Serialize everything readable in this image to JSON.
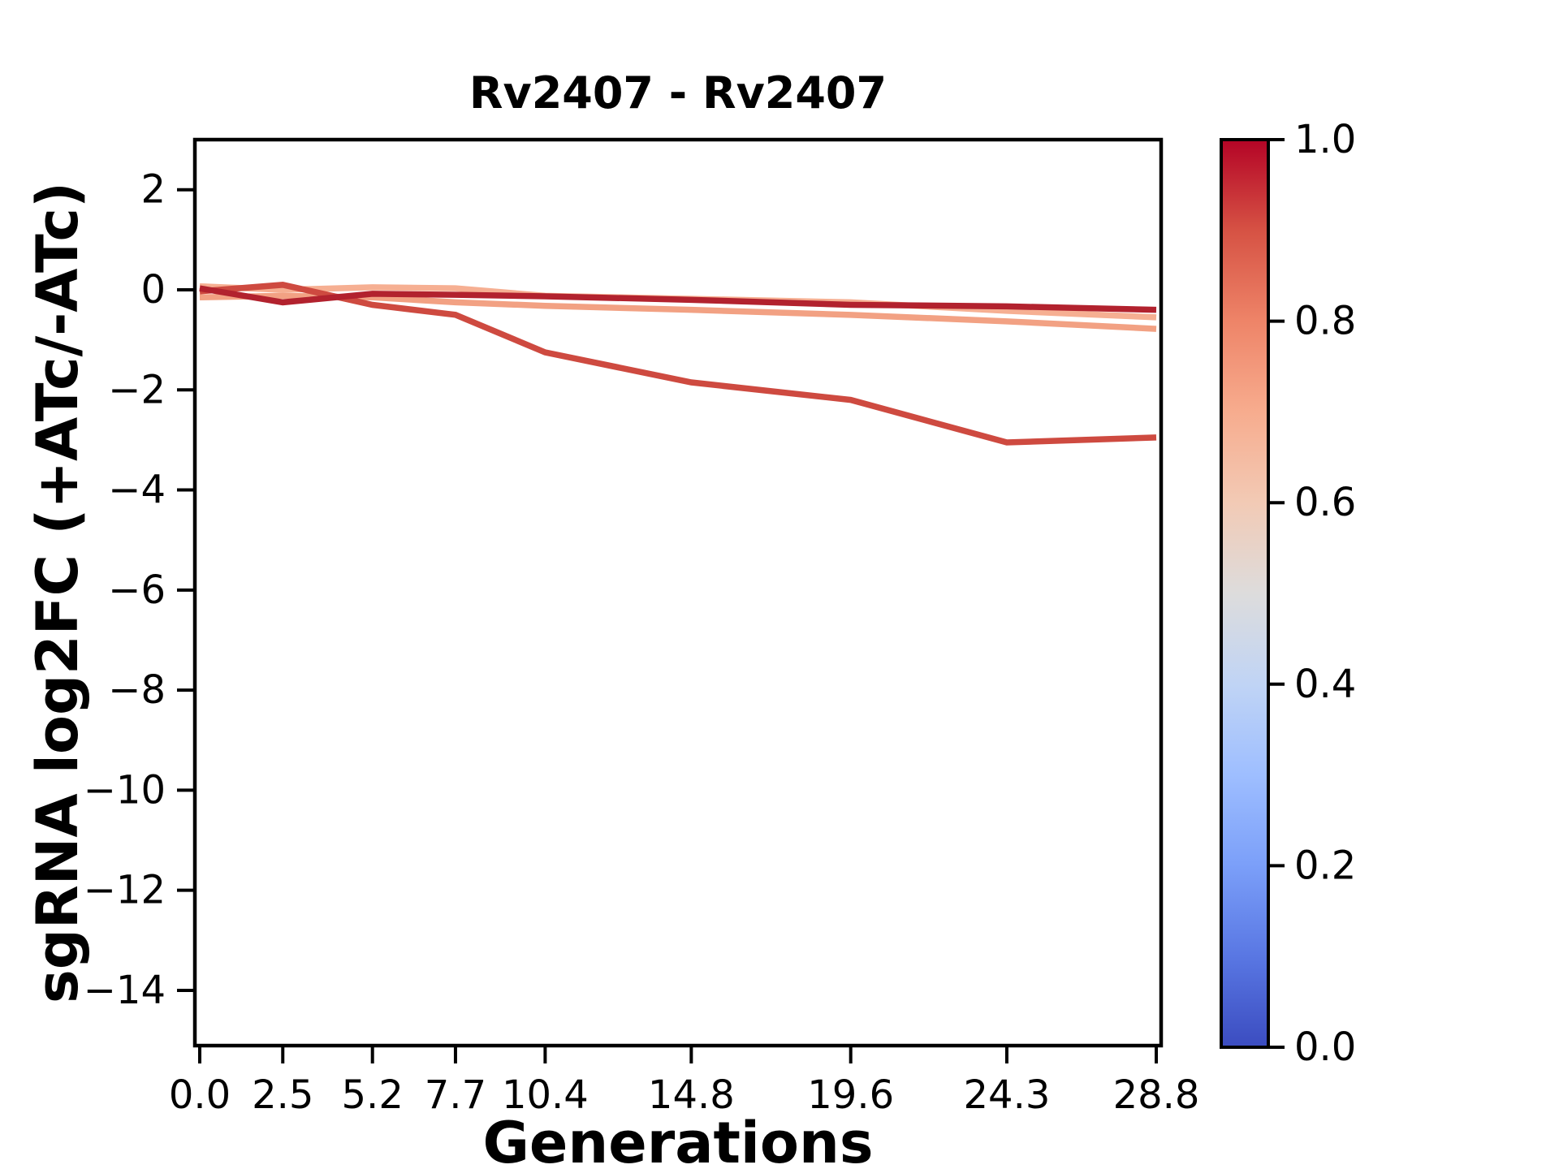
{
  "figure": {
    "background_color": "#ffffff"
  },
  "chart_data": {
    "type": "line",
    "title": "Rv2407 - Rv2407",
    "xlabel": "Generations",
    "ylabel": "sgRNA log2FC (+ATc/-ATc)",
    "grid": false,
    "xlim": [
      0,
      28.8
    ],
    "ylim": [
      -15.1,
      3.0
    ],
    "x": [
      0.0,
      2.5,
      5.2,
      7.7,
      10.4,
      14.8,
      19.6,
      24.3,
      28.8
    ],
    "xtick_labels": [
      "0.0",
      "2.5",
      "5.2",
      "7.7",
      "10.4",
      "14.8",
      "19.6",
      "24.3",
      "28.8"
    ],
    "ytick_values": [
      2,
      0,
      -2,
      -4,
      -6,
      -8,
      -10,
      -12,
      -14
    ],
    "ytick_labels": [
      "2",
      "0",
      "−2",
      "−4",
      "−6",
      "−8",
      "−10",
      "−12",
      "−14"
    ],
    "series": [
      {
        "name": "line-1",
        "description": "light salmon sgRNA trace (upper)",
        "color": "#f6af92",
        "values": [
          0.07,
          0.0,
          0.05,
          0.03,
          -0.12,
          -0.18,
          -0.25,
          -0.42,
          -0.55
        ]
      },
      {
        "name": "line-2",
        "description": "light salmon sgRNA trace (lower)",
        "color": "#f2a183",
        "values": [
          -0.15,
          -0.12,
          -0.15,
          -0.25,
          -0.32,
          -0.4,
          -0.5,
          -0.63,
          -0.78
        ]
      },
      {
        "name": "line-3",
        "description": "medium red sgRNA trace that depletes to about -3",
        "color": "#ce4a40",
        "values": [
          -0.03,
          0.1,
          -0.3,
          -0.5,
          -1.25,
          -1.85,
          -2.2,
          -3.05,
          -2.95
        ]
      },
      {
        "name": "line-4",
        "description": "dark red sgRNA trace staying near 0",
        "color": "#b2222e",
        "values": [
          0.03,
          -0.25,
          -0.08,
          -0.1,
          -0.13,
          -0.2,
          -0.3,
          -0.33,
          -0.4
        ]
      }
    ],
    "legend": "none",
    "colorbar": {
      "colormap": "coolwarm",
      "range": [
        0.0,
        1.0
      ],
      "ticks": [
        {
          "value": 1.0,
          "label": "1.0"
        },
        {
          "value": 0.8,
          "label": "0.8"
        },
        {
          "value": 0.6,
          "label": "0.6"
        },
        {
          "value": 0.4,
          "label": "0.4"
        },
        {
          "value": 0.2,
          "label": "0.2"
        },
        {
          "value": 0.0,
          "label": "0.0"
        }
      ],
      "gradient_stops": [
        {
          "offset": 0.0,
          "color": "#3b4cc0"
        },
        {
          "offset": 0.1,
          "color": "#5977e3"
        },
        {
          "offset": 0.2,
          "color": "#7b9ff9"
        },
        {
          "offset": 0.3,
          "color": "#9ebeff"
        },
        {
          "offset": 0.4,
          "color": "#c0d4f5"
        },
        {
          "offset": 0.5,
          "color": "#dddcdc"
        },
        {
          "offset": 0.6,
          "color": "#f2cab5"
        },
        {
          "offset": 0.7,
          "color": "#f7ac8e"
        },
        {
          "offset": 0.8,
          "color": "#ee8468"
        },
        {
          "offset": 0.9,
          "color": "#d65244"
        },
        {
          "offset": 1.0,
          "color": "#b40426"
        }
      ]
    }
  }
}
